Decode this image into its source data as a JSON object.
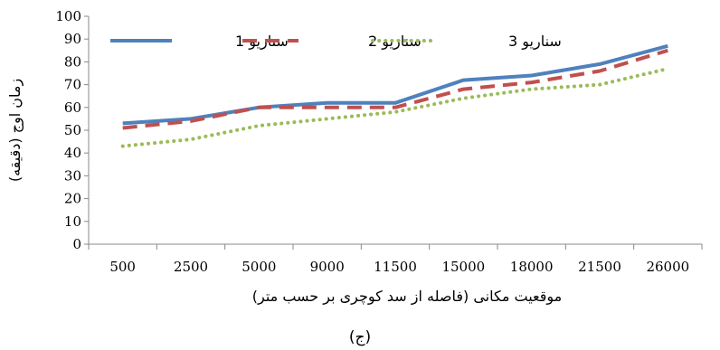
{
  "chart_data": {
    "type": "line",
    "title": "",
    "xlabel": "موقعیت مکانی (فاصله از سد کوچری بر حسب متر)",
    "ylabel": "زمان اوج (دقیقه)",
    "caption": "(ج)",
    "categories": [
      "500",
      "2500",
      "5000",
      "9000",
      "11500",
      "15000",
      "18000",
      "21500",
      "26000"
    ],
    "ylim": [
      0,
      100
    ],
    "yticks": [
      0,
      10,
      20,
      30,
      40,
      50,
      60,
      70,
      80,
      90,
      100
    ],
    "grid": false,
    "legend_position": "top",
    "series": [
      {
        "name": "سناریو 1",
        "values": [
          53,
          55,
          60,
          62,
          62,
          72,
          74,
          79,
          87
        ],
        "color": "#4f81bd",
        "style": "solid"
      },
      {
        "name": "سناریو 2",
        "values": [
          51,
          54,
          60,
          60,
          60,
          68,
          71,
          76,
          85
        ],
        "color": "#c0504d",
        "style": "dashed"
      },
      {
        "name": "سناریو 3",
        "values": [
          43,
          46,
          52,
          55,
          58,
          64,
          68,
          70,
          77
        ],
        "color": "#9bbb59",
        "style": "dotted"
      }
    ]
  }
}
